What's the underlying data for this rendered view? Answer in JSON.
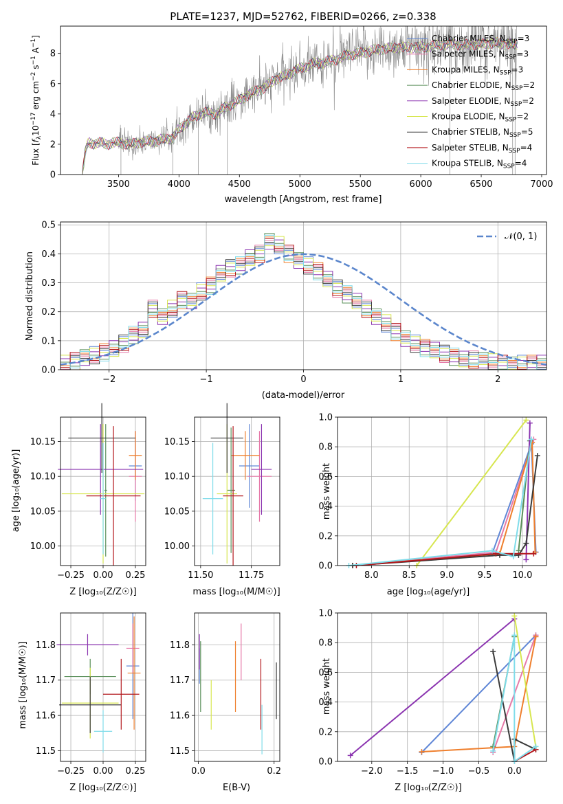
{
  "figure": {
    "title": "PLATE=1237, MJD=52762, FIBERID=0266, z=0.338"
  },
  "colors": {
    "chabrier_miles": "#5f86d6",
    "salpeter_miles": "#e679a8",
    "kroupa_miles": "#ef7f2d",
    "chabrier_elodie": "#5a8f5a",
    "salpeter_elodie": "#8b34b0",
    "kroupa_elodie": "#d7e64f",
    "chabrier_stelib": "#3a3a3a",
    "salpeter_stelib": "#b3171c",
    "kroupa_stelib": "#7fdcea",
    "data_gray": "#8a8a8a",
    "normal_dashed": "#5b86cc"
  },
  "chart_data": [
    {
      "id": "spectrum",
      "type": "line",
      "title": "PLATE=1237, MJD=52762, FIBERID=0266, z=0.338",
      "xlabel": "wavelength [Angstrom, rest frame]",
      "ylabel": "Flux [f_λ 10^-17 erg cm^-2 s^-1 A^-1]",
      "xlim": [
        3020,
        7040
      ],
      "ylim": [
        0,
        9.8
      ],
      "xticks": [
        3500,
        4000,
        4500,
        5000,
        5500,
        6000,
        6500,
        7000
      ],
      "yticks": [
        0,
        2,
        4,
        6,
        8
      ],
      "legend_position": "top-right",
      "legend": [
        {
          "label": "Chabrier MILES, N",
          "sub": "SSP",
          "suffix": "=3",
          "color_key": "chabrier_miles"
        },
        {
          "label": "Salpeter MILES, N",
          "sub": "SSP",
          "suffix": "=3",
          "color_key": "salpeter_miles"
        },
        {
          "label": "Kroupa MILES, N",
          "sub": "SSP",
          "suffix": "=3",
          "color_key": "kroupa_miles"
        },
        {
          "label": "Chabrier ELODIE, N",
          "sub": "SSP",
          "suffix": "=2",
          "color_key": "chabrier_elodie"
        },
        {
          "label": "Salpeter ELODIE, N",
          "sub": "SSP",
          "suffix": "=2",
          "color_key": "salpeter_elodie"
        },
        {
          "label": "Kroupa ELODIE, N",
          "sub": "SSP",
          "suffix": "=2",
          "color_key": "kroupa_elodie"
        },
        {
          "label": "Chabrier STELIB, N",
          "sub": "SSP",
          "suffix": "=5",
          "color_key": "chabrier_stelib"
        },
        {
          "label": "Salpeter STELIB, N",
          "sub": "SSP",
          "suffix": "=4",
          "color_key": "salpeter_stelib"
        },
        {
          "label": "Kroupa STELIB, N",
          "sub": "SSP",
          "suffix": "=4",
          "color_key": "kroupa_stelib"
        }
      ],
      "continuum": [
        [
          3200,
          0.0
        ],
        [
          3230,
          1.7
        ],
        [
          3250,
          2.1
        ],
        [
          3300,
          2.05
        ],
        [
          3350,
          2.1
        ],
        [
          3400,
          2.0
        ],
        [
          3450,
          2.1
        ],
        [
          3500,
          2.1
        ],
        [
          3600,
          2.0
        ],
        [
          3700,
          2.15
        ],
        [
          3800,
          2.2
        ],
        [
          3850,
          2.3
        ],
        [
          3900,
          2.4
        ],
        [
          3950,
          2.4
        ],
        [
          4000,
          3.0
        ],
        [
          4100,
          3.7
        ],
        [
          4200,
          4.1
        ],
        [
          4300,
          4.0
        ],
        [
          4400,
          4.5
        ],
        [
          4500,
          4.9
        ],
        [
          4600,
          5.4
        ],
        [
          4700,
          5.7
        ],
        [
          4800,
          6.3
        ],
        [
          4900,
          6.6
        ],
        [
          5000,
          7.0
        ],
        [
          5100,
          7.3
        ],
        [
          5200,
          7.4
        ],
        [
          5300,
          7.6
        ],
        [
          5400,
          7.9
        ],
        [
          5500,
          8.0
        ],
        [
          5600,
          8.2
        ],
        [
          5700,
          8.3
        ],
        [
          5800,
          8.4
        ],
        [
          5900,
          8.4
        ],
        [
          6000,
          8.4
        ],
        [
          6100,
          8.5
        ],
        [
          6200,
          8.6
        ],
        [
          6300,
          8.6
        ],
        [
          6400,
          8.55
        ],
        [
          6500,
          8.6
        ],
        [
          6600,
          8.7
        ],
        [
          6700,
          8.6
        ],
        [
          6800,
          8.6
        ]
      ]
    },
    {
      "id": "residuals",
      "type": "bar",
      "xlabel": "(data-model)/error",
      "ylabel": "Normed distribution",
      "xlim": [
        -2.5,
        2.5
      ],
      "ylim": [
        0,
        0.51
      ],
      "xticks": [
        -2,
        -1,
        0,
        1,
        2
      ],
      "yticks": [
        0.0,
        0.1,
        0.2,
        0.3,
        0.4,
        0.5
      ],
      "grid": true,
      "legend_position": "top-right",
      "legend": [
        {
          "label": "𝒩(0, 1)",
          "style": "dashed",
          "color_key": "normal_dashed"
        }
      ],
      "bin_width": 0.1,
      "histogram_levels": [
        0.02,
        0.03,
        0.045,
        0.05,
        0.06,
        0.07,
        0.09,
        0.12,
        0.14,
        0.21,
        0.18,
        0.21,
        0.24,
        0.24,
        0.27,
        0.29,
        0.33,
        0.35,
        0.36,
        0.39,
        0.4,
        0.44,
        0.43,
        0.4,
        0.38,
        0.36,
        0.34,
        0.31,
        0.28,
        0.26,
        0.24,
        0.21,
        0.18,
        0.16,
        0.13,
        0.11,
        0.09,
        0.075,
        0.065,
        0.055,
        0.045,
        0.04,
        0.035,
        0.03,
        0.025,
        0.02,
        0.02,
        0.02,
        0.02,
        0.02
      ]
    },
    {
      "id": "age_vs_z",
      "type": "scatter",
      "xlabel": "Z [log₁₀(Z/Z☉)]",
      "ylabel": "age  [log₁₀(age/yr)]",
      "xlim": [
        -0.33,
        0.33
      ],
      "ylim": [
        9.972,
        10.185
      ],
      "xticks": [
        -0.25,
        0.0,
        0.25
      ],
      "yticks": [
        10.0,
        10.05,
        10.1,
        10.15
      ],
      "grid": true,
      "points": [
        {
          "color_key": "chabrier_miles",
          "x": 0.25,
          "y": 10.115,
          "xerr": 0.05,
          "yerr": 0.05
        },
        {
          "color_key": "salpeter_miles",
          "x": 0.25,
          "y": 10.1,
          "xerr": 0.05,
          "yerr": 0.065
        },
        {
          "color_key": "kroupa_miles",
          "x": 0.25,
          "y": 10.13,
          "xerr": 0.05,
          "yerr": 0.035
        },
        {
          "color_key": "chabrier_elodie",
          "x": 0.02,
          "y": 10.08,
          "xerr": 0.01,
          "yerr": 0.095
        },
        {
          "color_key": "salpeter_elodie",
          "x": -0.02,
          "y": 10.11,
          "xerr": 0.33,
          "yerr": 0.065
        },
        {
          "color_key": "kroupa_elodie",
          "x": 0.0,
          "y": 10.075,
          "xerr": 0.32,
          "yerr": 0.1
        },
        {
          "color_key": "chabrier_stelib",
          "x": -0.01,
          "y": 10.155,
          "xerr": 0.26,
          "yerr": 0.05
        },
        {
          "color_key": "salpeter_stelib",
          "x": 0.08,
          "y": 10.072,
          "xerr": 0.21,
          "yerr": 0.1
        },
        {
          "color_key": "kroupa_stelib",
          "x": 0.0,
          "y": 10.068,
          "xerr": 0.02,
          "yerr": 0.08
        }
      ]
    },
    {
      "id": "age_vs_mass",
      "type": "scatter",
      "xlabel": "mass [log₁₀(M/M☉)]",
      "ylabel": "",
      "xlim": [
        11.47,
        11.89
      ],
      "ylim": [
        9.972,
        10.185
      ],
      "xticks": [
        11.5,
        11.75
      ],
      "yticks": [
        10.0,
        10.05,
        10.1,
        10.15
      ],
      "grid": true,
      "points": [
        {
          "color_key": "chabrier_miles",
          "x": 11.74,
          "y": 10.115,
          "xerr": 0.05,
          "yerr": 0.06
        },
        {
          "color_key": "salpeter_miles",
          "x": 11.79,
          "y": 10.1,
          "xerr": 0.06,
          "yerr": 0.065
        },
        {
          "color_key": "kroupa_miles",
          "x": 11.72,
          "y": 10.13,
          "xerr": 0.07,
          "yerr": 0.035
        },
        {
          "color_key": "chabrier_elodie",
          "x": 11.65,
          "y": 10.08,
          "xerr": 0.02,
          "yerr": 0.09
        },
        {
          "color_key": "salpeter_elodie",
          "x": 11.8,
          "y": 10.11,
          "xerr": 0.05,
          "yerr": 0.065
        },
        {
          "color_key": "kroupa_elodie",
          "x": 11.63,
          "y": 10.075,
          "xerr": 0.05,
          "yerr": 0.1
        },
        {
          "color_key": "chabrier_stelib",
          "x": 11.63,
          "y": 10.155,
          "xerr": 0.08,
          "yerr": 0.05
        },
        {
          "color_key": "salpeter_stelib",
          "x": 11.66,
          "y": 10.072,
          "xerr": 0.05,
          "yerr": 0.1
        },
        {
          "color_key": "kroupa_stelib",
          "x": 11.56,
          "y": 10.068,
          "xerr": 0.05,
          "yerr": 0.08
        }
      ]
    },
    {
      "id": "weight_vs_age",
      "type": "line",
      "xlabel": "age  [log₁₀(age/yr)]",
      "ylabel": "mass weight",
      "xlim": [
        7.55,
        10.32
      ],
      "ylim": [
        0,
        1.0
      ],
      "xticks": [
        8.0,
        8.5,
        9.0,
        9.5,
        10.0
      ],
      "yticks": [
        0.0,
        0.2,
        0.4,
        0.6,
        0.8,
        1.0
      ],
      "grid": true,
      "series": [
        {
          "color_key": "chabrier_miles",
          "x": [
            7.75,
            9.6,
            10.12,
            10.18
          ],
          "y": [
            0.0,
            0.08,
            0.82,
            0.09
          ]
        },
        {
          "color_key": "salpeter_miles",
          "x": [
            7.75,
            9.65,
            10.15
          ],
          "y": [
            0.0,
            0.09,
            0.85
          ]
        },
        {
          "color_key": "kroupa_miles",
          "x": [
            7.75,
            9.7,
            10.13,
            10.17
          ],
          "y": [
            0.0,
            0.08,
            0.83,
            0.09
          ]
        },
        {
          "color_key": "chabrier_elodie",
          "x": [
            9.95,
            10.1
          ],
          "y": [
            0.1,
            0.84
          ]
        },
        {
          "color_key": "salpeter_elodie",
          "x": [
            10.05,
            10.1
          ],
          "y": [
            0.04,
            0.96
          ]
        },
        {
          "color_key": "kroupa_elodie",
          "x": [
            8.6,
            10.05
          ],
          "y": [
            0.0,
            0.98
          ]
        },
        {
          "color_key": "chabrier_stelib",
          "x": [
            7.75,
            9.7,
            9.95,
            10.05,
            10.2
          ],
          "y": [
            0.0,
            0.07,
            0.07,
            0.15,
            0.74
          ]
        },
        {
          "color_key": "salpeter_stelib",
          "x": [
            7.8,
            9.65,
            10.15
          ],
          "y": [
            0.0,
            0.08,
            0.08
          ]
        },
        {
          "color_key": "kroupa_stelib",
          "x": [
            7.7,
            9.6,
            9.88,
            10.12
          ],
          "y": [
            0.0,
            0.1,
            0.06,
            0.85
          ]
        }
      ]
    },
    {
      "id": "mass_vs_z",
      "type": "scatter",
      "xlabel": "Z [log₁₀(Z/Z☉)]",
      "ylabel": "mass [log₁₀(M/M☉)]",
      "xlim": [
        -0.33,
        0.33
      ],
      "ylim": [
        11.47,
        11.89
      ],
      "xticks": [
        -0.25,
        0.0,
        0.25
      ],
      "yticks": [
        11.5,
        11.6,
        11.7,
        11.8
      ],
      "grid": true,
      "points": [
        {
          "color_key": "chabrier_miles",
          "x": 0.23,
          "y": 11.74,
          "xerr": 0.05,
          "yerr": 0.15
        },
        {
          "color_key": "salpeter_miles",
          "x": 0.23,
          "y": 11.79,
          "xerr": 0.05,
          "yerr": 0.07
        },
        {
          "color_key": "kroupa_miles",
          "x": 0.24,
          "y": 11.72,
          "xerr": 0.05,
          "yerr": 0.16
        },
        {
          "color_key": "chabrier_elodie",
          "x": -0.1,
          "y": 11.71,
          "xerr": 0.2,
          "yerr": 0.05
        },
        {
          "color_key": "salpeter_elodie",
          "x": -0.12,
          "y": 11.8,
          "xerr": 0.24,
          "yerr": 0.03
        },
        {
          "color_key": "kroupa_elodie",
          "x": -0.1,
          "y": 11.635,
          "xerr": 0.22,
          "yerr": 0.1
        },
        {
          "color_key": "chabrier_stelib",
          "x": -0.1,
          "y": 11.63,
          "xerr": 0.24,
          "yerr": 0.08
        },
        {
          "color_key": "salpeter_stelib",
          "x": 0.14,
          "y": 11.66,
          "xerr": 0.14,
          "yerr": 0.1
        },
        {
          "color_key": "kroupa_stelib",
          "x": 0.0,
          "y": 11.555,
          "xerr": 0.07,
          "yerr": 0.06
        }
      ]
    },
    {
      "id": "mass_vs_ebv",
      "type": "scatter",
      "xlabel": "E(B-V)",
      "ylabel": "",
      "xlim": [
        -0.01,
        0.215
      ],
      "ylim": [
        11.47,
        11.89
      ],
      "xticks": [
        0.0,
        0.2
      ],
      "yticks": [
        11.5,
        11.6,
        11.7,
        11.8
      ],
      "grid": true,
      "points": [
        {
          "color_key": "chabrier_miles",
          "x": 0.003,
          "y": 11.74,
          "xerr": 0,
          "yerr": 0.05
        },
        {
          "color_key": "salpeter_miles",
          "x": 0.113,
          "y": 11.78,
          "xerr": 0,
          "yerr": 0.08
        },
        {
          "color_key": "kroupa_miles",
          "x": 0.098,
          "y": 11.71,
          "xerr": 0,
          "yerr": 0.1
        },
        {
          "color_key": "chabrier_elodie",
          "x": 0.006,
          "y": 11.71,
          "xerr": 0,
          "yerr": 0.1
        },
        {
          "color_key": "salpeter_elodie",
          "x": 0.003,
          "y": 11.78,
          "xerr": 0,
          "yerr": 0.05
        },
        {
          "color_key": "kroupa_elodie",
          "x": 0.034,
          "y": 11.63,
          "xerr": 0,
          "yerr": 0.07
        },
        {
          "color_key": "chabrier_stelib",
          "x": 0.206,
          "y": 11.67,
          "xerr": 0,
          "yerr": 0.08
        },
        {
          "color_key": "salpeter_stelib",
          "x": 0.165,
          "y": 11.66,
          "xerr": 0,
          "yerr": 0.1
        },
        {
          "color_key": "kroupa_stelib",
          "x": 0.168,
          "y": 11.56,
          "xerr": 0,
          "yerr": 0.07
        }
      ]
    },
    {
      "id": "weight_vs_z",
      "type": "line",
      "xlabel": "Z [log₁₀(Z/Z☉)]",
      "ylabel": "mass weight",
      "xlim": [
        -2.48,
        0.45
      ],
      "ylim": [
        0,
        1.0
      ],
      "xticks": [
        -2.0,
        -1.5,
        -1.0,
        -0.5,
        0.0
      ],
      "yticks": [
        0.0,
        0.2,
        0.4,
        0.6,
        0.8,
        1.0
      ],
      "grid": true,
      "series": [
        {
          "color_key": "chabrier_miles",
          "x": [
            -1.3,
            0.3
          ],
          "y": [
            0.06,
            0.85
          ]
        },
        {
          "color_key": "salpeter_miles",
          "x": [
            -0.3,
            0.3
          ],
          "y": [
            0.06,
            0.85
          ]
        },
        {
          "color_key": "kroupa_miles",
          "x": [
            -1.3,
            0.0,
            0.3
          ],
          "y": [
            0.065,
            0.1,
            0.84
          ]
        },
        {
          "color_key": "chabrier_elodie",
          "x": [
            -0.3,
            0.0
          ],
          "y": [
            0.1,
            0.84
          ]
        },
        {
          "color_key": "salpeter_elodie",
          "x": [
            -2.3,
            0.0
          ],
          "y": [
            0.04,
            0.96
          ]
        },
        {
          "color_key": "kroupa_elodie",
          "x": [
            0.0,
            0.3
          ],
          "y": [
            0.98,
            0.1
          ]
        },
        {
          "color_key": "chabrier_stelib",
          "x": [
            -0.3,
            0.0,
            0.0,
            0.3
          ],
          "y": [
            0.74,
            0.0,
            0.15,
            0.08
          ]
        },
        {
          "color_key": "salpeter_stelib",
          "x": [
            0.0,
            0.3
          ],
          "y": [
            0.0,
            0.08
          ]
        },
        {
          "color_key": "kroupa_stelib",
          "x": [
            -0.3,
            0.0,
            0.0,
            0.3
          ],
          "y": [
            0.07,
            0.85,
            0.0,
            0.1
          ]
        }
      ]
    }
  ]
}
